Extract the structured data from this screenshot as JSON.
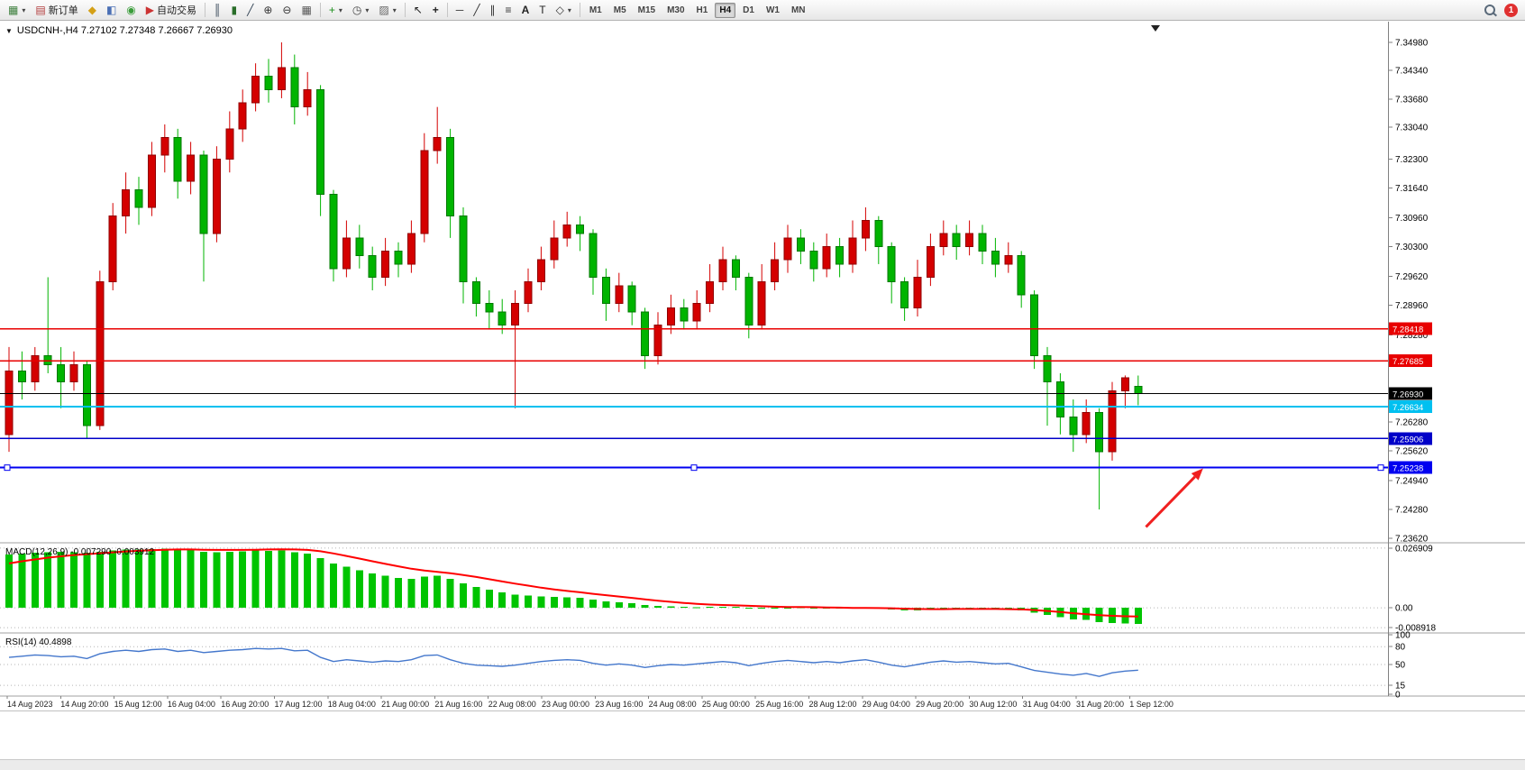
{
  "toolbar": {
    "buttons": [
      {
        "name": "chart-window",
        "icon": "chart-window-icon",
        "dropdown": true
      },
      {
        "name": "new-order",
        "icon": "new-order-icon",
        "label": "新订单"
      },
      {
        "name": "market-watch",
        "icon": "market-watch-icon"
      },
      {
        "name": "navigator",
        "icon": "navigator-icon"
      },
      {
        "name": "terminal",
        "icon": "terminal-icon"
      },
      {
        "name": "autotrade",
        "icon": "autotrade-icon",
        "label": "自动交易"
      },
      {
        "sep": true
      },
      {
        "name": "bar-chart-mode",
        "icon": "bars-icon"
      },
      {
        "name": "candle-chart-mode",
        "icon": "candles-icon"
      },
      {
        "name": "line-chart-mode",
        "icon": "line-icon"
      },
      {
        "name": "zoom-in",
        "icon": "zoom-in-icon"
      },
      {
        "name": "zoom-out",
        "icon": "zoom-out-icon"
      },
      {
        "name": "tile-windows",
        "icon": "tile-windows-icon"
      },
      {
        "sep": true
      },
      {
        "name": "indicators",
        "icon": "indicators-icon",
        "dropdown": true
      },
      {
        "name": "periods",
        "icon": "clock-icon",
        "dropdown": true
      },
      {
        "name": "templates",
        "icon": "template-icon",
        "dropdown": true
      },
      {
        "sep": true
      },
      {
        "name": "cursor",
        "icon": "cursor-icon"
      },
      {
        "name": "crosshair",
        "icon": "crosshair-icon"
      },
      {
        "sep": true
      },
      {
        "name": "horizontal-line",
        "icon": "hline-icon"
      },
      {
        "name": "trendline",
        "icon": "trendline-icon"
      },
      {
        "name": "channel",
        "icon": "channel-icon"
      },
      {
        "name": "fibonacci",
        "icon": "fibonacci-icon"
      },
      {
        "name": "text",
        "icon": "text-a-icon"
      },
      {
        "name": "text-label",
        "icon": "text-label-icon"
      },
      {
        "name": "shapes",
        "icon": "shapes-icon",
        "dropdown": true
      },
      {
        "sep": true
      }
    ],
    "timeframes": [
      "M1",
      "M5",
      "M15",
      "M30",
      "H1",
      "H4",
      "D1",
      "W1",
      "MN"
    ],
    "active_timeframe": "H4",
    "notification_count": "1"
  },
  "chart": {
    "symbol_header": "USDCNH-,H4  7.27102 7.27348 7.26667 7.26930",
    "colors": {
      "bull": "#D40000",
      "bull_edge": "#900000",
      "bear": "#00B400",
      "bear_edge": "#007800"
    },
    "price_axis": {
      "ticks": [
        "7.34980",
        "7.34340",
        "7.33680",
        "7.33040",
        "7.32300",
        "7.31640",
        "7.30960",
        "7.30300",
        "7.29620",
        "7.28960",
        "7.28280",
        "7.27620",
        "7.26280",
        "7.25620",
        "7.24940",
        "7.24280",
        "7.23620"
      ]
    },
    "lines": [
      {
        "price": "7.28418",
        "color": "#E80000",
        "width": 1.3
      },
      {
        "price": "7.27685",
        "color": "#E80000",
        "width": 1.3
      },
      {
        "price": "7.26930",
        "color": "#000000",
        "width": 1
      },
      {
        "price": "7.26634",
        "color": "#00C0F0",
        "width": 2
      },
      {
        "price": "7.25906",
        "color": "#0000C8",
        "width": 1.6
      },
      {
        "price": "7.25238",
        "color": "#0000F0",
        "width": 2,
        "handles": true
      }
    ],
    "arrow": {
      "from": {
        "i": 87.6,
        "price": 7.2388
      },
      "to": {
        "i": 92.0,
        "price": 7.2522
      },
      "color": "#F02020"
    },
    "time_labels": [
      "14 Aug 2023",
      "14 Aug 20:00",
      "15 Aug 12:00",
      "16 Aug 04:00",
      "16 Aug 20:00",
      "17 Aug 12:00",
      "18 Aug 04:00",
      "21 Aug 00:00",
      "21 Aug 16:00",
      "22 Aug 08:00",
      "23 Aug 00:00",
      "23 Aug 16:00",
      "24 Aug 08:00",
      "25 Aug 00:00",
      "25 Aug 16:00",
      "28 Aug 12:00",
      "29 Aug 04:00",
      "29 Aug 20:00",
      "30 Aug 12:00",
      "31 Aug 04:00",
      "31 Aug 20:00",
      "1 Sep 12:00"
    ],
    "candles": [
      [
        7.26,
        7.28,
        7.256,
        7.2745
      ],
      [
        7.2745,
        7.279,
        7.268,
        7.272
      ],
      [
        7.272,
        7.28,
        7.27,
        7.278
      ],
      [
        7.278,
        7.296,
        7.274,
        7.276
      ],
      [
        7.276,
        7.28,
        7.266,
        7.272
      ],
      [
        7.272,
        7.279,
        7.27,
        7.276
      ],
      [
        7.276,
        7.277,
        7.259,
        7.262
      ],
      [
        7.262,
        7.2975,
        7.261,
        7.295
      ],
      [
        7.295,
        7.313,
        7.293,
        7.31
      ],
      [
        7.31,
        7.32,
        7.306,
        7.316
      ],
      [
        7.316,
        7.319,
        7.308,
        7.312
      ],
      [
        7.312,
        7.327,
        7.31,
        7.324
      ],
      [
        7.324,
        7.331,
        7.32,
        7.328
      ],
      [
        7.328,
        7.33,
        7.314,
        7.318
      ],
      [
        7.318,
        7.327,
        7.315,
        7.324
      ],
      [
        7.324,
        7.325,
        7.295,
        7.306
      ],
      [
        7.306,
        7.326,
        7.304,
        7.323
      ],
      [
        7.323,
        7.334,
        7.32,
        7.33
      ],
      [
        7.33,
        7.339,
        7.327,
        7.336
      ],
      [
        7.336,
        7.345,
        7.334,
        7.342
      ],
      [
        7.342,
        7.346,
        7.336,
        7.339
      ],
      [
        7.339,
        7.3498,
        7.337,
        7.344
      ],
      [
        7.344,
        7.347,
        7.331,
        7.335
      ],
      [
        7.335,
        7.343,
        7.333,
        7.339
      ],
      [
        7.339,
        7.34,
        7.31,
        7.315
      ],
      [
        7.315,
        7.316,
        7.295,
        7.298
      ],
      [
        7.298,
        7.309,
        7.296,
        7.305
      ],
      [
        7.305,
        7.308,
        7.298,
        7.301
      ],
      [
        7.301,
        7.303,
        7.293,
        7.296
      ],
      [
        7.296,
        7.305,
        7.294,
        7.302
      ],
      [
        7.302,
        7.304,
        7.296,
        7.299
      ],
      [
        7.299,
        7.309,
        7.297,
        7.306
      ],
      [
        7.306,
        7.329,
        7.304,
        7.325
      ],
      [
        7.325,
        7.335,
        7.322,
        7.328
      ],
      [
        7.328,
        7.33,
        7.305,
        7.31
      ],
      [
        7.31,
        7.312,
        7.29,
        7.295
      ],
      [
        7.295,
        7.296,
        7.287,
        7.29
      ],
      [
        7.29,
        7.293,
        7.284,
        7.288
      ],
      [
        7.288,
        7.291,
        7.283,
        7.285
      ],
      [
        7.285,
        7.293,
        7.266,
        7.29
      ],
      [
        7.29,
        7.298,
        7.288,
        7.295
      ],
      [
        7.295,
        7.303,
        7.293,
        7.3
      ],
      [
        7.3,
        7.309,
        7.298,
        7.305
      ],
      [
        7.305,
        7.311,
        7.303,
        7.308
      ],
      [
        7.308,
        7.31,
        7.302,
        7.306
      ],
      [
        7.306,
        7.307,
        7.292,
        7.296
      ],
      [
        7.296,
        7.298,
        7.286,
        7.29
      ],
      [
        7.29,
        7.297,
        7.288,
        7.294
      ],
      [
        7.294,
        7.295,
        7.285,
        7.288
      ],
      [
        7.288,
        7.289,
        7.275,
        7.278
      ],
      [
        7.278,
        7.288,
        7.276,
        7.285
      ],
      [
        7.285,
        7.292,
        7.283,
        7.289
      ],
      [
        7.289,
        7.291,
        7.284,
        7.286
      ],
      [
        7.286,
        7.293,
        7.284,
        7.29
      ],
      [
        7.29,
        7.299,
        7.288,
        7.295
      ],
      [
        7.295,
        7.303,
        7.293,
        7.3
      ],
      [
        7.3,
        7.301,
        7.293,
        7.296
      ],
      [
        7.296,
        7.297,
        7.282,
        7.285
      ],
      [
        7.285,
        7.299,
        7.284,
        7.295
      ],
      [
        7.295,
        7.304,
        7.293,
        7.3
      ],
      [
        7.3,
        7.308,
        7.297,
        7.305
      ],
      [
        7.305,
        7.307,
        7.299,
        7.302
      ],
      [
        7.302,
        7.304,
        7.295,
        7.298
      ],
      [
        7.298,
        7.306,
        7.296,
        7.303
      ],
      [
        7.303,
        7.305,
        7.296,
        7.299
      ],
      [
        7.299,
        7.309,
        7.297,
        7.305
      ],
      [
        7.305,
        7.312,
        7.302,
        7.309
      ],
      [
        7.309,
        7.31,
        7.299,
        7.303
      ],
      [
        7.303,
        7.304,
        7.29,
        7.295
      ],
      [
        7.295,
        7.296,
        7.286,
        7.289
      ],
      [
        7.289,
        7.3,
        7.287,
        7.296
      ],
      [
        7.296,
        7.306,
        7.294,
        7.303
      ],
      [
        7.303,
        7.309,
        7.301,
        7.306
      ],
      [
        7.306,
        7.308,
        7.3,
        7.303
      ],
      [
        7.303,
        7.309,
        7.301,
        7.306
      ],
      [
        7.306,
        7.308,
        7.299,
        7.302
      ],
      [
        7.302,
        7.305,
        7.296,
        7.299
      ],
      [
        7.299,
        7.304,
        7.297,
        7.301
      ],
      [
        7.301,
        7.302,
        7.289,
        7.292
      ],
      [
        7.292,
        7.293,
        7.275,
        7.278
      ],
      [
        7.278,
        7.28,
        7.262,
        7.272
      ],
      [
        7.272,
        7.274,
        7.26,
        7.264
      ],
      [
        7.264,
        7.268,
        7.256,
        7.26
      ],
      [
        7.26,
        7.268,
        7.258,
        7.265
      ],
      [
        7.265,
        7.266,
        7.2428,
        7.256
      ],
      [
        7.256,
        7.272,
        7.254,
        7.27
      ],
      [
        7.27,
        7.2735,
        7.266,
        7.273
      ],
      [
        7.27102,
        7.27348,
        7.26667,
        7.2693
      ]
    ]
  },
  "macd": {
    "header": "MACD(12,26,9) -0.007290 -0.003912",
    "axis": [
      "0.026909",
      "0.00",
      "-0.008918"
    ],
    "range": [
      -0.0105,
      0.0285
    ],
    "values": [
      0.024,
      0.0245,
      0.0248,
      0.025,
      0.0252,
      0.025,
      0.0248,
      0.0252,
      0.0258,
      0.0262,
      0.0263,
      0.0265,
      0.0266,
      0.0262,
      0.026,
      0.0252,
      0.025,
      0.0252,
      0.0255,
      0.0258,
      0.0257,
      0.0258,
      0.025,
      0.0245,
      0.0225,
      0.02,
      0.0185,
      0.017,
      0.0155,
      0.0145,
      0.0135,
      0.013,
      0.014,
      0.0145,
      0.013,
      0.011,
      0.0095,
      0.0082,
      0.007,
      0.006,
      0.0055,
      0.0052,
      0.005,
      0.0048,
      0.0045,
      0.0038,
      0.003,
      0.0026,
      0.002,
      0.0012,
      0.0008,
      0.0006,
      0.0004,
      0.0003,
      0.0004,
      0.0005,
      0.0004,
      0.0,
      -0.0002,
      -0.0001,
      0.0001,
      0.0002,
      0.0,
      -0.0002,
      -0.0004,
      -0.0003,
      -0.0001,
      -0.0003,
      -0.0008,
      -0.0012,
      -0.0012,
      -0.0008,
      -0.0004,
      -0.0003,
      -0.0002,
      -0.0004,
      -0.0007,
      -0.0008,
      -0.0012,
      -0.0022,
      -0.0032,
      -0.0042,
      -0.0052,
      -0.0055,
      -0.0065,
      -0.0068,
      -0.007,
      -0.00729
    ],
    "signal": [
      0.02,
      0.021,
      0.0218,
      0.0226,
      0.0232,
      0.0238,
      0.0242,
      0.0246,
      0.025,
      0.0254,
      0.0257,
      0.026,
      0.0262,
      0.0263,
      0.0263,
      0.0262,
      0.0261,
      0.0261,
      0.0261,
      0.0262,
      0.0263,
      0.0264,
      0.0263,
      0.0261,
      0.0255,
      0.0245,
      0.0234,
      0.0222,
      0.021,
      0.0198,
      0.0187,
      0.0176,
      0.0168,
      0.0162,
      0.0156,
      0.0148,
      0.0139,
      0.0129,
      0.0119,
      0.0109,
      0.01,
      0.0091,
      0.0083,
      0.0076,
      0.007,
      0.0063,
      0.0057,
      0.0051,
      0.0045,
      0.0038,
      0.0032,
      0.0027,
      0.0022,
      0.0018,
      0.0015,
      0.0013,
      0.0011,
      0.0009,
      0.0007,
      0.0005,
      0.0004,
      0.0004,
      0.0003,
      0.0002,
      0.0001,
      0.0,
      0.0,
      -0.0001,
      -0.0002,
      -0.0004,
      -0.0005,
      -0.0006,
      -0.0006,
      -0.0005,
      -0.0005,
      -0.0005,
      -0.0005,
      -0.0006,
      -0.0007,
      -0.001,
      -0.0014,
      -0.0019,
      -0.0024,
      -0.0029,
      -0.0033,
      -0.0036,
      -0.0038,
      -0.00391
    ],
    "colors": {
      "histogram": "#00C400",
      "signal": "#FF0000"
    }
  },
  "rsi": {
    "header": "RSI(14) 40.4898",
    "axis_labels": [
      "100",
      "80",
      "50",
      "15",
      "0"
    ],
    "levels": [
      80,
      50,
      15
    ],
    "range": [
      0,
      100
    ],
    "color": "#4477CC",
    "values": [
      62,
      64,
      66,
      65,
      63,
      64,
      60,
      68,
      72,
      74,
      72,
      75,
      76,
      72,
      74,
      70,
      72,
      74,
      75,
      77,
      76,
      77,
      73,
      74,
      62,
      55,
      58,
      56,
      54,
      56,
      55,
      58,
      65,
      66,
      58,
      52,
      49,
      48,
      47,
      49,
      52,
      55,
      57,
      58,
      57,
      52,
      49,
      51,
      49,
      45,
      48,
      50,
      49,
      51,
      53,
      55,
      53,
      48,
      52,
      55,
      57,
      55,
      53,
      55,
      53,
      56,
      58,
      54,
      49,
      46,
      50,
      54,
      56,
      54,
      55,
      53,
      51,
      52,
      46,
      40,
      37,
      34,
      32,
      35,
      30,
      36,
      39,
      40.49
    ]
  }
}
